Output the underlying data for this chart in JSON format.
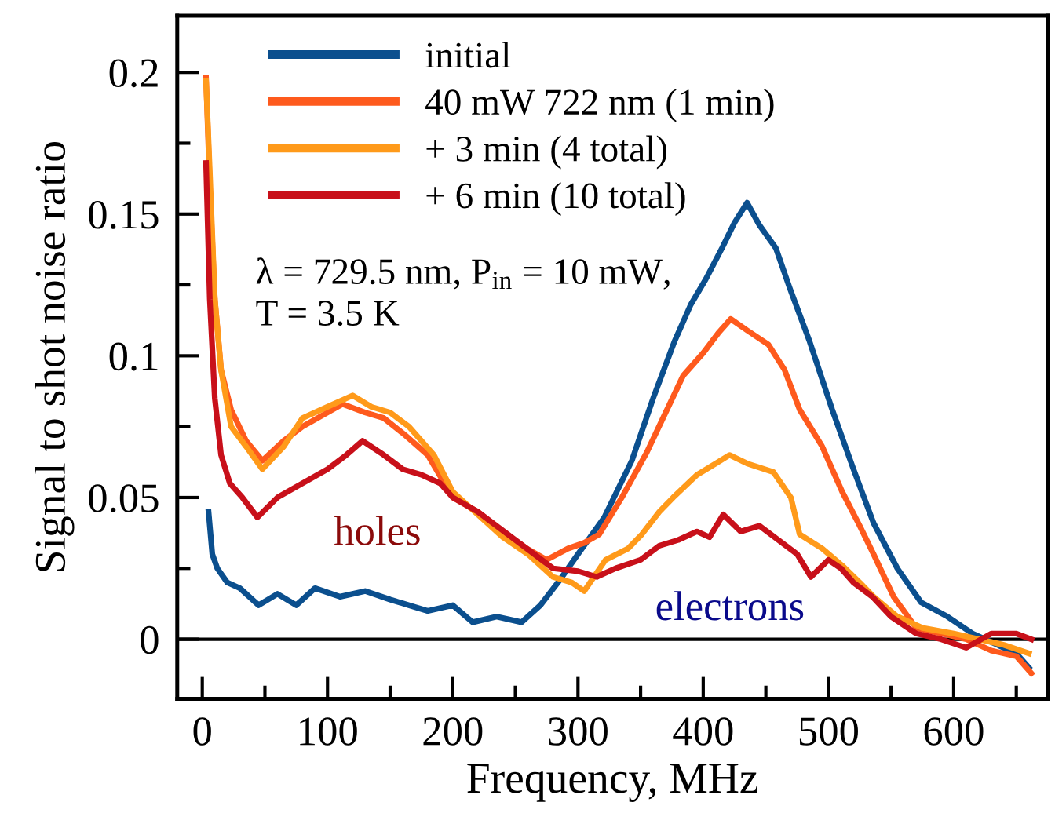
{
  "chart_data": {
    "type": "line",
    "xlabel": "Frequency, MHz",
    "ylabel": "Signal to shot noise ratio",
    "xlim": [
      -20,
      675
    ],
    "ylim": [
      -0.021,
      0.22
    ],
    "xticks": [
      0,
      {
        "value": 50,
        "label": null
      },
      100,
      {
        "value": 150,
        "label": null
      },
      200,
      {
        "value": 250,
        "label": null
      },
      300,
      {
        "value": 350,
        "label": null
      },
      400,
      {
        "value": 450,
        "label": null
      },
      500,
      {
        "value": 550,
        "label": null
      },
      600,
      {
        "value": 650,
        "label": null
      }
    ],
    "yticks": [
      0,
      {
        "value": 0.025,
        "label": null
      },
      0.05,
      {
        "value": 0.075,
        "label": null
      },
      0.1,
      {
        "value": 0.125,
        "label": null
      },
      0.15,
      {
        "value": 0.175,
        "label": null
      },
      0.2
    ],
    "grid": false,
    "legend": "top left",
    "marker": "none",
    "line_style": "solid",
    "ref_lines": [
      {
        "axis": "y",
        "value": 0,
        "color": "#000000"
      }
    ],
    "annotations": [
      "λ = 729.5 nm, P$_{in}$ = 10 mW,\nT = 3.5 K",
      "holes",
      "electrons"
    ],
    "series": [
      {
        "name": "initial",
        "color": "#0b4f8e",
        "x": [
          5,
          8,
          12,
          20,
          30,
          45,
          60,
          75,
          90,
          110,
          130,
          150,
          165,
          180,
          200,
          216,
          235,
          255,
          270,
          284,
          300,
          321,
          343,
          360,
          377,
          390,
          402,
          415,
          425,
          435,
          445,
          458,
          469,
          485,
          503,
          520,
          536,
          555,
          574,
          595,
          615,
          635,
          650,
          660
        ],
        "values": [
          0.045,
          0.03,
          0.025,
          0.02,
          0.018,
          0.012,
          0.016,
          0.012,
          0.018,
          0.015,
          0.017,
          0.014,
          0.012,
          0.01,
          0.012,
          0.006,
          0.008,
          0.006,
          0.012,
          0.02,
          0.03,
          0.043,
          0.063,
          0.085,
          0.105,
          0.118,
          0.127,
          0.138,
          0.147,
          0.154,
          0.146,
          0.138,
          0.124,
          0.105,
          0.081,
          0.06,
          0.041,
          0.025,
          0.013,
          0.008,
          0.002,
          -0.002,
          -0.005,
          -0.01
        ]
      },
      {
        "name": "40 mW 722 nm (1 min)",
        "color": "#fe5a1d",
        "x": [
          3,
          6,
          10,
          15,
          23,
          35,
          48,
          65,
          80,
          100,
          112,
          130,
          145,
          162,
          180,
          200,
          220,
          240,
          259,
          275,
          292,
          305,
          317,
          335,
          355,
          370,
          384,
          400,
          412,
          422,
          435,
          452,
          465,
          477,
          495,
          511,
          525,
          536,
          552,
          570,
          590,
          610,
          630,
          650,
          662
        ],
        "values": [
          0.198,
          0.16,
          0.12,
          0.095,
          0.081,
          0.07,
          0.063,
          0.07,
          0.075,
          0.08,
          0.083,
          0.08,
          0.078,
          0.072,
          0.065,
          0.05,
          0.045,
          0.038,
          0.032,
          0.028,
          0.032,
          0.034,
          0.037,
          0.05,
          0.066,
          0.08,
          0.093,
          0.101,
          0.108,
          0.113,
          0.109,
          0.104,
          0.095,
          0.081,
          0.068,
          0.052,
          0.04,
          0.03,
          0.015,
          0.004,
          0.002,
          0.0,
          -0.004,
          -0.006,
          -0.012
        ]
      },
      {
        "name": "+ 3 min (4 total)",
        "color": "#ff9a1a",
        "x": [
          3,
          6,
          10,
          15,
          23,
          35,
          48,
          65,
          80,
          100,
          120,
          135,
          150,
          165,
          185,
          200,
          220,
          240,
          260,
          280,
          295,
          305,
          322,
          340,
          351,
          365,
          376,
          395,
          410,
          421,
          435,
          456,
          470,
          477,
          495,
          511,
          525,
          536,
          555,
          575,
          600,
          620,
          640,
          660
        ],
        "values": [
          0.197,
          0.165,
          0.12,
          0.095,
          0.075,
          0.068,
          0.06,
          0.068,
          0.078,
          0.082,
          0.086,
          0.082,
          0.08,
          0.075,
          0.065,
          0.052,
          0.044,
          0.036,
          0.03,
          0.022,
          0.02,
          0.017,
          0.028,
          0.032,
          0.037,
          0.045,
          0.05,
          0.058,
          0.062,
          0.065,
          0.062,
          0.059,
          0.05,
          0.037,
          0.032,
          0.026,
          0.02,
          0.015,
          0.008,
          0.004,
          0.002,
          0.0,
          -0.002,
          -0.005
        ]
      },
      {
        "name": "+ 6 min (10 total)",
        "color": "#c8101a",
        "x": [
          3,
          6,
          10,
          15,
          22,
          32,
          44,
          60,
          80,
          100,
          115,
          128,
          145,
          160,
          175,
          190,
          200,
          220,
          250,
          265,
          280,
          300,
          315,
          330,
          350,
          365,
          380,
          395,
          405,
          416,
          430,
          445,
          460,
          475,
          486,
          500,
          510,
          520,
          535,
          550,
          570,
          590,
          610,
          630,
          650,
          662
        ],
        "values": [
          0.168,
          0.12,
          0.085,
          0.065,
          0.055,
          0.05,
          0.043,
          0.05,
          0.055,
          0.06,
          0.065,
          0.07,
          0.065,
          0.06,
          0.058,
          0.055,
          0.05,
          0.045,
          0.035,
          0.03,
          0.025,
          0.024,
          0.022,
          0.025,
          0.028,
          0.033,
          0.035,
          0.038,
          0.036,
          0.044,
          0.038,
          0.04,
          0.035,
          0.03,
          0.022,
          0.028,
          0.025,
          0.02,
          0.015,
          0.008,
          0.002,
          0.0,
          -0.003,
          0.002,
          0.002,
          0.0
        ]
      }
    ]
  }
}
